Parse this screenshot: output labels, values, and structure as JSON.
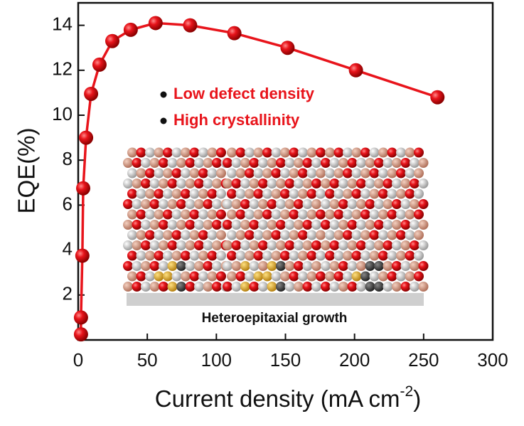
{
  "chart_data": {
    "type": "line",
    "xlabel": "Current density (mA cm",
    "xlabel_sup": "-2",
    "xlabel_end": ")",
    "ylabel": "EQE(%)",
    "xlim": [
      0,
      300
    ],
    "ylim": [
      0,
      15
    ],
    "xticks": [
      0,
      50,
      100,
      150,
      200,
      250,
      300
    ],
    "yticks": [
      2,
      4,
      6,
      8,
      10,
      12,
      14
    ],
    "series": [
      {
        "color": "#e8141b",
        "x": [
          2,
          2,
          3,
          3.6,
          5.7,
          9.3,
          15.4,
          24.7,
          38,
          56,
          81,
          113,
          151.5,
          201,
          260
        ],
        "values": [
          0.25,
          1.0,
          3.75,
          6.75,
          9.0,
          10.95,
          12.25,
          13.3,
          13.8,
          14.1,
          14.0,
          13.65,
          13.0,
          12.0,
          10.8
        ]
      }
    ],
    "annotations": [
      "Low defect density",
      "High crystallinity",
      "Heteroepitaxial growth"
    ]
  }
}
